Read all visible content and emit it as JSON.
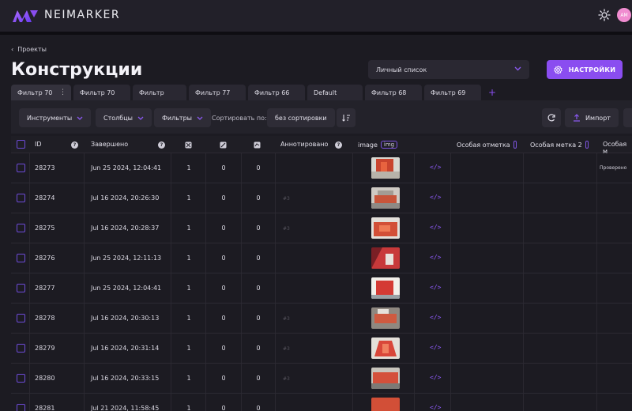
{
  "app": {
    "brand": "NEIMARKER",
    "avatar_initials": "AM",
    "accent": "#8a4df0"
  },
  "breadcrumb": {
    "arrow": "‹",
    "label": "Проекты"
  },
  "page": {
    "title": "Конструкции"
  },
  "view_select": {
    "value": "Личный список"
  },
  "settings_button": {
    "label": "НАСТРОЙКИ"
  },
  "tabs": [
    {
      "label": "Фильтр 70",
      "menu": "⋮"
    },
    {
      "label": "Фильтр 70"
    },
    {
      "label": "Фильтр"
    },
    {
      "label": "Фильтр 77"
    },
    {
      "label": "Фильтр 66"
    },
    {
      "label": "Default"
    },
    {
      "label": "Фильтр 68"
    },
    {
      "label": "Фильтр 69"
    }
  ],
  "tab_add": "+",
  "toolbar": {
    "tools": "Инструменты",
    "columns": "Столбцы",
    "filters": "Фильтры",
    "sort_label": "Сортировать по:",
    "sort_value": "без сортировки",
    "import": "Импорт"
  },
  "table": {
    "headers": {
      "id": "ID",
      "completed": "Завершено",
      "annotated": "Аннотировано",
      "image": "image",
      "img_tag": "img",
      "special_mark": "Особая отметка",
      "special_label2": "Особая метка 2",
      "special_more": "Особая м"
    },
    "rows": [
      {
        "id": "28273",
        "completed": "Jun 25 2024, 12:04:41",
        "c1": "1",
        "c2": "0",
        "c3": "0",
        "annot": "",
        "note": "Проверено"
      },
      {
        "id": "28274",
        "completed": "Jul 16 2024, 20:26:30",
        "c1": "1",
        "c2": "0",
        "c3": "0",
        "annot": "#3",
        "note": ""
      },
      {
        "id": "28275",
        "completed": "Jul 16 2024, 20:28:37",
        "c1": "1",
        "c2": "0",
        "c3": "0",
        "annot": "#3",
        "note": ""
      },
      {
        "id": "28276",
        "completed": "Jun 25 2024, 12:11:13",
        "c1": "1",
        "c2": "0",
        "c3": "0",
        "annot": "",
        "note": ""
      },
      {
        "id": "28277",
        "completed": "Jun 25 2024, 12:04:41",
        "c1": "1",
        "c2": "0",
        "c3": "0",
        "annot": "",
        "note": ""
      },
      {
        "id": "28278",
        "completed": "Jul 16 2024, 20:30:13",
        "c1": "1",
        "c2": "0",
        "c3": "0",
        "annot": "#3",
        "note": ""
      },
      {
        "id": "28279",
        "completed": "Jul 16 2024, 20:31:14",
        "c1": "1",
        "c2": "0",
        "c3": "0",
        "annot": "#3",
        "note": ""
      },
      {
        "id": "28280",
        "completed": "Jul 16 2024, 20:33:15",
        "c1": "1",
        "c2": "0",
        "c3": "0",
        "annot": "#3",
        "note": ""
      },
      {
        "id": "28281",
        "completed": "Jul 21 2024, 11:58:45",
        "c1": "1",
        "c2": "0",
        "c3": "0",
        "annot": "",
        "note": ""
      }
    ]
  }
}
